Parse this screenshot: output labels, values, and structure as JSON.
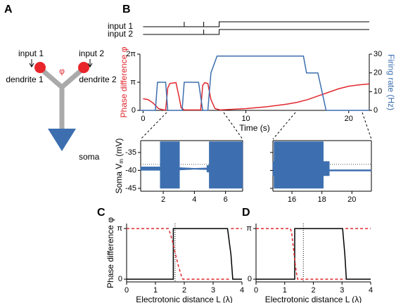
{
  "panel_labels": [
    "A",
    "B",
    "C",
    "D"
  ],
  "diagram": {
    "inputs": [
      "input 1",
      "input 2"
    ],
    "phase": "φ",
    "dendrites": [
      "dendrite 1",
      "dendrite 2"
    ],
    "soma": "soma"
  },
  "chart_data": [
    {
      "type": "line",
      "xlim": [
        -0.3,
        22
      ],
      "ylim": [
        0,
        1
      ],
      "series": [
        {
          "name": "input 1",
          "color": "#000000",
          "x": [
            0,
            4,
            4,
            4,
            5.9,
            5.9,
            5.9,
            7.4,
            7.4,
            22
          ],
          "values": [
            0,
            0,
            1,
            0,
            0,
            1,
            0,
            0,
            1,
            1
          ]
        },
        {
          "name": "input 2",
          "color": "#000000",
          "x": [
            0,
            5.9,
            5.9,
            5.9,
            7.4,
            7.4,
            22
          ],
          "values": [
            0,
            0,
            1,
            0,
            0,
            1,
            1
          ]
        }
      ]
    },
    {
      "type": "line",
      "xlabel": "Time (s)",
      "ylabel": "Phase difference φ",
      "y2label": "Firing rate (Hz)",
      "xlim": [
        -0.3,
        22
      ],
      "xticks": [
        0,
        10,
        20
      ],
      "ylim": [
        0,
        6.2832
      ],
      "yticks": [
        0,
        {
          "value": 3.1416,
          "label": "π"
        },
        {
          "value": 6.2832,
          "label": "2π"
        }
      ],
      "y2lim": [
        0,
        30
      ],
      "y2ticks": [
        0,
        10,
        20,
        30
      ],
      "series": [
        {
          "color": "#e0282e",
          "x": [
            0,
            0.5,
            1,
            1.5,
            2,
            2.2,
            2.4,
            2.6,
            3.2,
            3.5,
            3.7,
            4,
            5.6,
            5.8,
            6,
            6.3,
            6.6,
            7,
            7.5,
            10,
            12,
            14,
            15,
            16,
            17,
            18,
            19,
            20,
            21,
            22
          ],
          "values": [
            1.3,
            1.2,
            0.8,
            0.2,
            0.05,
            0.05,
            2.5,
            3.0,
            3.1,
            1.5,
            0.3,
            0.05,
            0.05,
            2.8,
            3.1,
            3.0,
            1.2,
            0.2,
            0.05,
            0.2,
            0.4,
            0.7,
            0.9,
            1.2,
            1.6,
            2.0,
            2.4,
            2.7,
            2.85,
            2.95
          ]
        },
        {
          "color": "#3d6fb0",
          "axis": "y2",
          "x": [
            -0.3,
            1.2,
            1.4,
            2.2,
            2.4,
            3.8,
            4,
            5.4,
            5.8,
            6.3,
            6.6,
            7.2,
            15.6,
            15.9,
            17,
            17.4,
            17.8,
            22
          ],
          "values": [
            0,
            0,
            15,
            15,
            0,
            0,
            15,
            15,
            0,
            0,
            20,
            29,
            29,
            20,
            20,
            10,
            0,
            0
          ]
        }
      ]
    },
    {
      "type": "envelope",
      "ylabel": "Soma V",
      "ylabel_subscript": "m",
      "ylabel_unit": " (mV)",
      "xlim": [
        0.55,
        7.1
      ],
      "xticks": [
        2,
        4,
        6
      ],
      "ylim": [
        -45.8,
        -31.7
      ],
      "yticks": [
        -35,
        -40,
        -45
      ],
      "reference_y": -38.3,
      "series": [
        {
          "color": "#3d6fb0",
          "x": [
            0.55,
            1.8,
            1.8,
            3.05,
            3.05,
            4.0,
            4.8,
            4.8,
            4.95,
            4.95,
            7.1
          ],
          "upper": [
            -39.0,
            -39.0,
            -32.0,
            -32.0,
            -39.2,
            -39.4,
            -39.3,
            -38.6,
            -38.6,
            -32.0,
            -32.0
          ],
          "lower": [
            -40.0,
            -40.0,
            -45.0,
            -45.0,
            -39.9,
            -39.7,
            -39.8,
            -40.5,
            -40.5,
            -45.0,
            -45.0
          ]
        }
      ]
    },
    {
      "type": "envelope",
      "ytick_labels": false,
      "xlim": [
        14.73,
        21.3
      ],
      "xticks": [
        16,
        18,
        20
      ],
      "ylim": [
        -45.8,
        -31.7
      ],
      "yticks": [
        -35,
        -40,
        -45
      ],
      "reference_y": -38.3,
      "series": [
        {
          "color": "#3d6fb0",
          "x": [
            14.73,
            14.8,
            14.8,
            18.1,
            18.1,
            18.5,
            18.5,
            21.3
          ],
          "upper": [
            -37.5,
            -37.5,
            -32.0,
            -32.0,
            -37.5,
            -37.5,
            -39.8,
            -39.8
          ],
          "lower": [
            -41.5,
            -41.5,
            -45.0,
            -45.0,
            -41.5,
            -41.5,
            -40.2,
            -40.2
          ]
        }
      ]
    },
    {
      "type": "line",
      "xlabel": "Electrotonic distance L (λ)",
      "ylabel": "Phase difference φ",
      "xlim": [
        0,
        4
      ],
      "xticks": [
        0,
        1,
        2,
        3,
        4
      ],
      "ylim": [
        -0.17,
        3.45
      ],
      "yticks": [
        0,
        {
          "value": 3.1416,
          "label": "π"
        }
      ],
      "reference_x": 1.68,
      "series": [
        {
          "color": "#000000",
          "style": "solid",
          "x": [
            0,
            1.62,
            1.62,
            3.5,
            3.62,
            3.68,
            4
          ],
          "values": [
            0,
            0,
            3.1416,
            3.1416,
            1.5,
            0,
            0
          ]
        },
        {
          "color": "#e0282e",
          "style": "dashed",
          "x": [
            0,
            1.45,
            1.5,
            1.6,
            1.7,
            1.8,
            1.9,
            1.95,
            3.62,
            3.62,
            3.62,
            4
          ],
          "values": [
            3.1416,
            3.1416,
            2.9,
            2.3,
            1.5,
            0.8,
            0.2,
            0,
            0,
            null,
            3.1416,
            3.1416
          ]
        }
      ]
    },
    {
      "type": "line",
      "xlabel": "Electrotonic distance L (λ)",
      "xlim": [
        0,
        4
      ],
      "xticks": [
        0,
        1,
        2,
        3,
        4
      ],
      "ylim": [
        -0.17,
        3.45
      ],
      "yticks": [
        0,
        {
          "value": 3.1416,
          "label": "π"
        }
      ],
      "reference_x": 1.65,
      "series": [
        {
          "color": "#000000",
          "style": "solid",
          "x": [
            0,
            1.35,
            1.35,
            3.02,
            3.1,
            3.15,
            4
          ],
          "values": [
            0,
            0,
            3.1416,
            3.1416,
            1.5,
            0,
            0
          ]
        },
        {
          "color": "#e0282e",
          "style": "dashed",
          "x": [
            0,
            1.2,
            1.25,
            1.3,
            1.35,
            1.4,
            1.45,
            3.12,
            3.12,
            3.12,
            4
          ],
          "values": [
            3.1416,
            3.1416,
            2.8,
            2.0,
            1.2,
            0.5,
            0,
            0,
            null,
            3.1416,
            3.1416
          ]
        }
      ]
    }
  ]
}
